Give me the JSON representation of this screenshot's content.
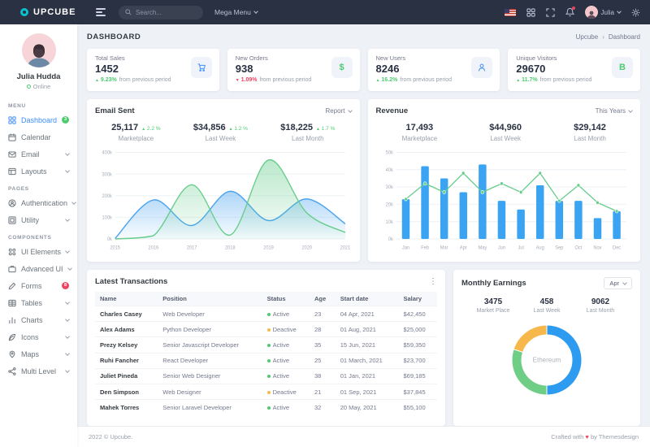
{
  "navbar": {
    "brand": "UPCUBE",
    "search_placeholder": "Search...",
    "mega_menu_label": "Mega Menu",
    "user_name": "Julia",
    "icons": [
      "flag-us",
      "apps-grid",
      "fullscreen",
      "bell",
      "user-avatar",
      "gear"
    ]
  },
  "sidebar": {
    "user": {
      "name": "Julia Hudda",
      "status": "Online"
    },
    "sections": [
      {
        "title": "MENU",
        "items": [
          {
            "label": "Dashboard",
            "icon": "dashboard-icon",
            "active": true,
            "badge": "3",
            "badge_color": "#4ecb71"
          },
          {
            "label": "Calendar",
            "icon": "calendar-icon"
          },
          {
            "label": "Email",
            "icon": "email-icon",
            "chevron": true
          },
          {
            "label": "Layouts",
            "icon": "layouts-icon",
            "chevron": true
          }
        ]
      },
      {
        "title": "PAGES",
        "items": [
          {
            "label": "Authentication",
            "icon": "authentication-icon",
            "chevron": true
          },
          {
            "label": "Utility",
            "icon": "utility-icon",
            "chevron": true
          }
        ]
      },
      {
        "title": "COMPONENTS",
        "items": [
          {
            "label": "UI Elements",
            "icon": "ui-elements-icon",
            "chevron": true
          },
          {
            "label": "Advanced UI",
            "icon": "advanced-ui-icon",
            "chevron": true
          },
          {
            "label": "Forms",
            "icon": "forms-icon",
            "badge": "8",
            "badge_color": "#ec4561"
          },
          {
            "label": "Tables",
            "icon": "tables-icon",
            "chevron": true
          },
          {
            "label": "Charts",
            "icon": "charts-icon",
            "chevron": true
          },
          {
            "label": "Icons",
            "icon": "icons-icon",
            "chevron": true
          },
          {
            "label": "Maps",
            "icon": "maps-icon",
            "chevron": true
          },
          {
            "label": "Multi Level",
            "icon": "multi-level-icon",
            "chevron": true
          }
        ]
      }
    ]
  },
  "page": {
    "title": "DASHBOARD",
    "breadcrumb": [
      "Upcube",
      "Dashboard"
    ]
  },
  "stats": [
    {
      "label": "Total Sales",
      "value": "1452",
      "delta": "9.23%",
      "direction": "up",
      "suffix": "from previous period",
      "icon": "cart-icon",
      "icon_color": "#3d8ef8"
    },
    {
      "label": "New Orders",
      "value": "938",
      "delta": "1.09%",
      "direction": "down",
      "suffix": "from previous period",
      "icon": "dollar-icon",
      "icon_color": "#4ecb71"
    },
    {
      "label": "New Users",
      "value": "8246",
      "delta": "16.2%",
      "direction": "up",
      "suffix": "from previous period",
      "icon": "user-icon",
      "icon_color": "#3d8ef8"
    },
    {
      "label": "Unique Visitors",
      "value": "29670",
      "delta": "11.7%",
      "direction": "up",
      "suffix": "from previous period",
      "icon": "bitcoin-icon",
      "icon_color": "#4ecb71"
    }
  ],
  "colors": {
    "up": "#4ecb71",
    "down": "#ec4561",
    "blue": "#3ba4f2",
    "green": "#66cd8b",
    "orange": "#f7b84b"
  },
  "email_sent": {
    "title": "Email Sent",
    "menu_label": "Report",
    "stats": [
      {
        "value": "25,117",
        "delta": "2.2 %",
        "label": "Marketplace"
      },
      {
        "value": "$34,856",
        "delta": "1.2 %",
        "label": "Last Week"
      },
      {
        "value": "$18,225",
        "delta": "1.7 %",
        "label": "Last Month"
      }
    ]
  },
  "revenue": {
    "title": "Revenue",
    "menu_label": "This Years",
    "stats": [
      {
        "value": "17,493",
        "label": "Marketplace"
      },
      {
        "value": "$44,960",
        "label": "Last Week"
      },
      {
        "value": "$29,142",
        "label": "Last Month"
      }
    ]
  },
  "transactions": {
    "title": "Latest Transactions",
    "columns": [
      "Name",
      "Position",
      "Status",
      "Age",
      "Start date",
      "Salary"
    ],
    "rows": [
      {
        "name": "Charles Casey",
        "position": "Web Developer",
        "status": "Active",
        "age": "23",
        "start": "04 Apr, 2021",
        "salary": "$42,450"
      },
      {
        "name": "Alex Adams",
        "position": "Python Developer",
        "status": "Deactive",
        "age": "28",
        "start": "01 Aug, 2021",
        "salary": "$25,000"
      },
      {
        "name": "Prezy Kelsey",
        "position": "Senior Javascript Developer",
        "status": "Active",
        "age": "35",
        "start": "15 Jun, 2021",
        "salary": "$59,350"
      },
      {
        "name": "Ruhi Fancher",
        "position": "React Developer",
        "status": "Active",
        "age": "25",
        "start": "01 March, 2021",
        "salary": "$23,700"
      },
      {
        "name": "Juliet Pineda",
        "position": "Senior Web Designer",
        "status": "Active",
        "age": "38",
        "start": "01 Jan, 2021",
        "salary": "$69,185"
      },
      {
        "name": "Den Simpson",
        "position": "Web Designer",
        "status": "Deactive",
        "age": "21",
        "start": "01 Sep, 2021",
        "salary": "$37,845"
      },
      {
        "name": "Mahek Torres",
        "position": "Senior Laravel Developer",
        "status": "Active",
        "age": "32",
        "start": "20 May, 2021",
        "salary": "$55,100"
      }
    ],
    "status_colors": {
      "Active": "#4ecb71",
      "Deactive": "#f7b84b"
    }
  },
  "monthly_earnings": {
    "title": "Monthly Earnings",
    "select_value": "Apr",
    "stats": [
      {
        "value": "3475",
        "label": "Market Place"
      },
      {
        "value": "458",
        "label": "Last Week"
      },
      {
        "value": "9062",
        "label": "Last Month"
      }
    ]
  },
  "footer": {
    "left": "2022 © Upcube.",
    "right_pre": "Crafted with",
    "right_post": "by Themesdesign",
    "heart": "♥"
  },
  "chart_data": [
    {
      "id": "email_sent",
      "type": "area",
      "title": "Email Sent",
      "x": [
        "2015",
        "2016",
        "2017",
        "2018",
        "2019",
        "2020",
        "2021"
      ],
      "unit": "k",
      "series": [
        {
          "name": "series-blue",
          "color": "#4aa3f0",
          "values": [
            2,
            180,
            62,
            220,
            85,
            185,
            70
          ]
        },
        {
          "name": "series-green",
          "color": "#66cd8b",
          "values": [
            0,
            15,
            250,
            18,
            365,
            120,
            30
          ]
        }
      ],
      "ylim": [
        0,
        400
      ],
      "yticks": [
        "0k",
        "100k",
        "200k",
        "300k",
        "400k"
      ],
      "grid": true,
      "legend": false
    },
    {
      "id": "revenue",
      "type": "bar",
      "title": "Revenue",
      "categories": [
        "Jan",
        "Feb",
        "Mar",
        "Apr",
        "May",
        "Jun",
        "Jul",
        "Aug",
        "Sep",
        "Oct",
        "Nov",
        "Dec"
      ],
      "unit": "k",
      "series": [
        {
          "name": "bars",
          "type": "bar",
          "color": "#3ba4f2",
          "values": [
            23,
            42,
            35,
            27,
            43,
            22,
            17,
            31,
            22,
            22,
            12,
            16
          ]
        },
        {
          "name": "line",
          "type": "line",
          "color": "#66cd8b",
          "values": [
            23,
            32,
            27,
            38,
            27,
            32,
            27,
            38,
            22,
            31,
            21,
            16
          ]
        }
      ],
      "ylim": [
        0,
        50
      ],
      "yticks": [
        "0k",
        "10k",
        "20k",
        "30k",
        "40k",
        "50k"
      ],
      "grid": true,
      "legend": false
    },
    {
      "id": "monthly_earnings",
      "type": "pie",
      "center_label": "Ethereum",
      "slices": [
        {
          "value": 50,
          "color": "#2d9cf0"
        },
        {
          "value": 30,
          "color": "#6fce85"
        },
        {
          "value": 20,
          "color": "#f7b84b"
        }
      ]
    }
  ]
}
